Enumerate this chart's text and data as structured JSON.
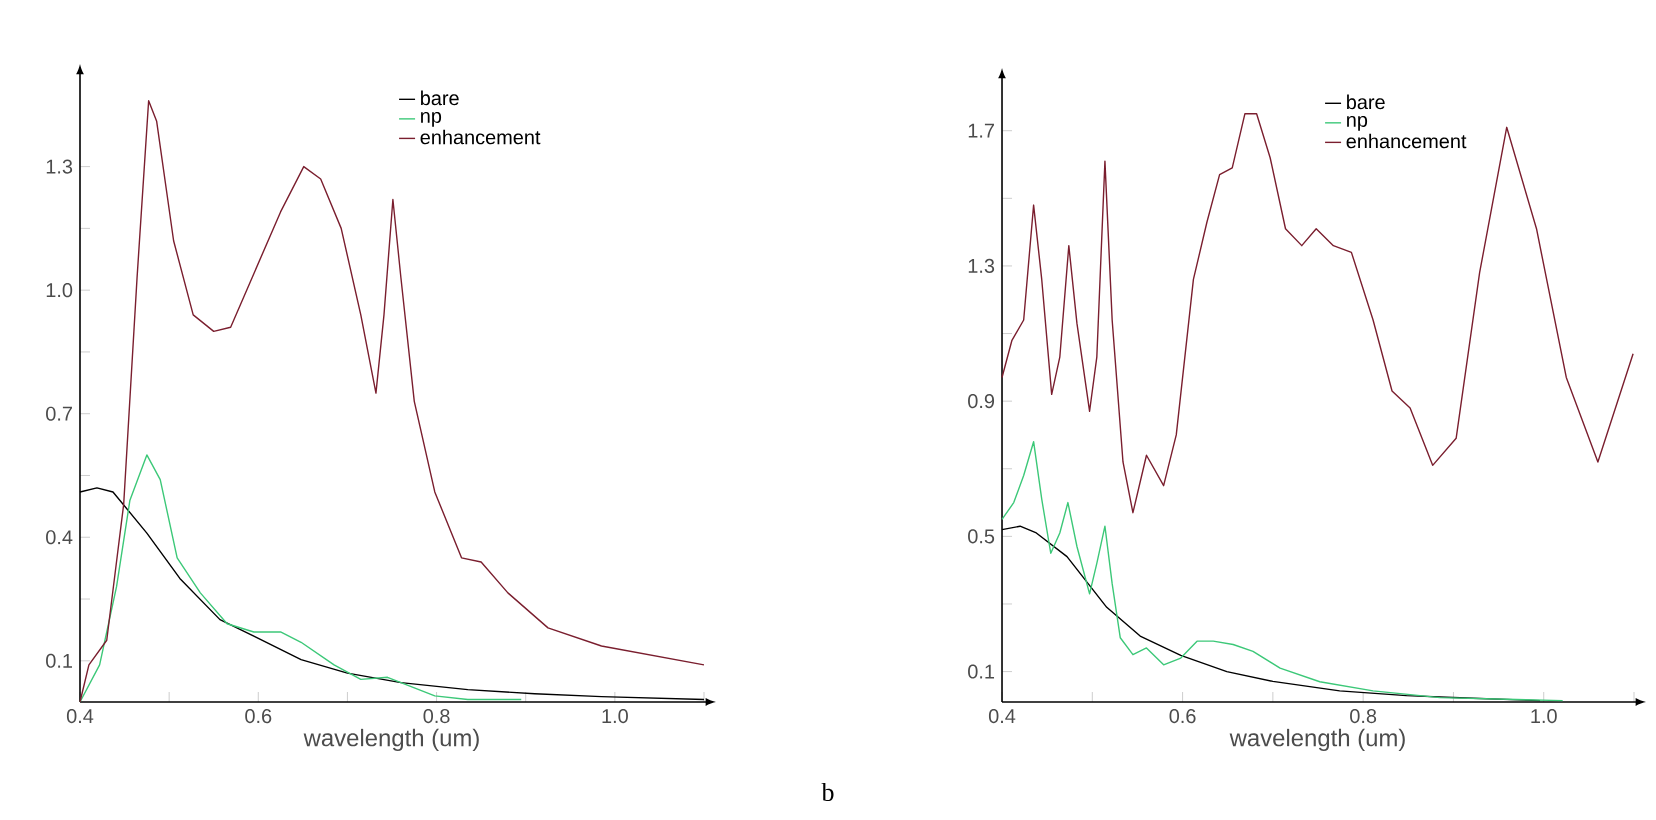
{
  "chart_data": [
    {
      "type": "line",
      "xlabel": "wavelength (um)",
      "legend": "top right",
      "annotations": [
        "b"
      ],
      "xlim": [
        0.4,
        1.1
      ],
      "ylim": [
        0,
        1.52
      ],
      "xticks": [
        0.4,
        {
          "value": 0.5,
          "label": null
        },
        0.6,
        {
          "value": 0.7,
          "label": null
        },
        0.8,
        {
          "value": 0.9,
          "label": null
        },
        {
          "value": 1,
          "label": "1.0"
        },
        {
          "value": 1.1,
          "label": null
        }
      ],
      "yticks": [
        0.1,
        {
          "value": 0.25,
          "label": null
        },
        0.4,
        {
          "value": 0.55,
          "label": null
        },
        0.7,
        {
          "value": 0.85,
          "label": null
        },
        {
          "value": 1,
          "label": "1.0"
        },
        {
          "value": 1.15,
          "label": null
        },
        1.3
      ],
      "series": [
        {
          "name": "bare",
          "color": "#000000",
          "x": [
            0.4,
            0.419,
            0.437,
            0.475,
            0.512,
            0.557,
            0.595,
            0.648,
            0.7,
            0.76,
            0.835,
            0.91,
            0.985,
            1.1
          ],
          "values": [
            0.51,
            0.52,
            0.51,
            0.41,
            0.3,
            0.2,
            0.16,
            0.103,
            0.07,
            0.047,
            0.03,
            0.02,
            0.013,
            0.006
          ]
        },
        {
          "name": "np",
          "color": "#3cc878",
          "x": [
            0.4,
            0.422,
            0.441,
            0.456,
            0.475,
            0.49,
            0.509,
            0.535,
            0.565,
            0.595,
            0.625,
            0.648,
            0.685,
            0.715,
            0.745,
            0.798,
            0.835,
            0.895
          ],
          "values": [
            0.0,
            0.09,
            0.28,
            0.49,
            0.6,
            0.54,
            0.35,
            0.265,
            0.19,
            0.17,
            0.17,
            0.145,
            0.09,
            0.055,
            0.06,
            0.015,
            0.006,
            0.006
          ]
        },
        {
          "name": "enhancement",
          "color": "#7a1e2e",
          "x": [
            0.4,
            0.41,
            0.43,
            0.449,
            0.464,
            0.477,
            0.486,
            0.505,
            0.527,
            0.55,
            0.569,
            0.595,
            0.625,
            0.651,
            0.67,
            0.693,
            0.715,
            0.732,
            0.741,
            0.751,
            0.76,
            0.775,
            0.798,
            0.828,
            0.85,
            0.88,
            0.925,
            0.985,
            1.1
          ],
          "values": [
            0.0,
            0.09,
            0.15,
            0.48,
            1.03,
            1.46,
            1.41,
            1.12,
            0.94,
            0.9,
            0.91,
            1.04,
            1.19,
            1.3,
            1.27,
            1.15,
            0.94,
            0.75,
            0.94,
            1.22,
            1.03,
            0.73,
            0.51,
            0.35,
            0.34,
            0.265,
            0.18,
            0.136,
            0.09
          ]
        }
      ]
    },
    {
      "type": "line",
      "xlabel": "wavelength (um)",
      "legend": "top right",
      "xlim": [
        0.4,
        1.1
      ],
      "ylim": [
        0.01,
        1.85
      ],
      "xticks": [
        0.4,
        {
          "value": 0.5,
          "label": null
        },
        0.6,
        {
          "value": 0.7,
          "label": null
        },
        0.8,
        {
          "value": 0.9,
          "label": null
        },
        {
          "value": 1,
          "label": "1.0"
        },
        {
          "value": 1.1,
          "label": null
        }
      ],
      "yticks": [
        0.1,
        {
          "value": 0.3,
          "label": null
        },
        0.5,
        {
          "value": 0.7,
          "label": null
        },
        0.9,
        {
          "value": 1.1,
          "label": null
        },
        1.3,
        {
          "value": 1.5,
          "label": null
        },
        1.7
      ],
      "series": [
        {
          "name": "bare",
          "color": "#000000",
          "x": [
            0.4,
            0.42,
            0.438,
            0.472,
            0.516,
            0.553,
            0.598,
            0.649,
            0.7,
            0.774,
            0.848,
            0.922,
            0.996
          ],
          "values": [
            0.52,
            0.53,
            0.51,
            0.44,
            0.29,
            0.205,
            0.148,
            0.1,
            0.071,
            0.043,
            0.029,
            0.021,
            0.014
          ]
        },
        {
          "name": "np",
          "color": "#3cc878",
          "x": [
            0.4,
            0.413,
            0.424,
            0.435,
            0.444,
            0.454,
            0.464,
            0.473,
            0.483,
            0.497,
            0.505,
            0.514,
            0.522,
            0.531,
            0.545,
            0.56,
            0.579,
            0.598,
            0.616,
            0.634,
            0.656,
            0.678,
            0.708,
            0.752,
            0.811,
            0.885,
            0.959,
            1.021
          ],
          "values": [
            0.55,
            0.6,
            0.68,
            0.78,
            0.61,
            0.45,
            0.51,
            0.6,
            0.47,
            0.33,
            0.42,
            0.53,
            0.36,
            0.2,
            0.15,
            0.17,
            0.12,
            0.14,
            0.19,
            0.19,
            0.18,
            0.16,
            0.11,
            0.07,
            0.043,
            0.023,
            0.018,
            0.014
          ]
        },
        {
          "name": "enhancement",
          "color": "#7a1e2e",
          "x": [
            0.4,
            0.411,
            0.424,
            0.435,
            0.444,
            0.455,
            0.464,
            0.474,
            0.483,
            0.497,
            0.505,
            0.514,
            0.522,
            0.534,
            0.545,
            0.56,
            0.579,
            0.593,
            0.612,
            0.627,
            0.641,
            0.655,
            0.669,
            0.682,
            0.697,
            0.714,
            0.732,
            0.748,
            0.767,
            0.787,
            0.811,
            0.832,
            0.852,
            0.877,
            0.903,
            0.929,
            0.959,
            0.992,
            1.025,
            1.06,
            1.099
          ],
          "values": [
            0.97,
            1.08,
            1.14,
            1.48,
            1.26,
            0.92,
            1.03,
            1.36,
            1.13,
            0.87,
            1.03,
            1.61,
            1.14,
            0.72,
            0.57,
            0.74,
            0.65,
            0.8,
            1.26,
            1.43,
            1.57,
            1.59,
            1.75,
            1.75,
            1.62,
            1.41,
            1.36,
            1.41,
            1.36,
            1.34,
            1.14,
            0.93,
            0.88,
            0.71,
            0.79,
            1.28,
            1.71,
            1.41,
            0.97,
            0.72,
            1.04
          ]
        }
      ]
    }
  ]
}
